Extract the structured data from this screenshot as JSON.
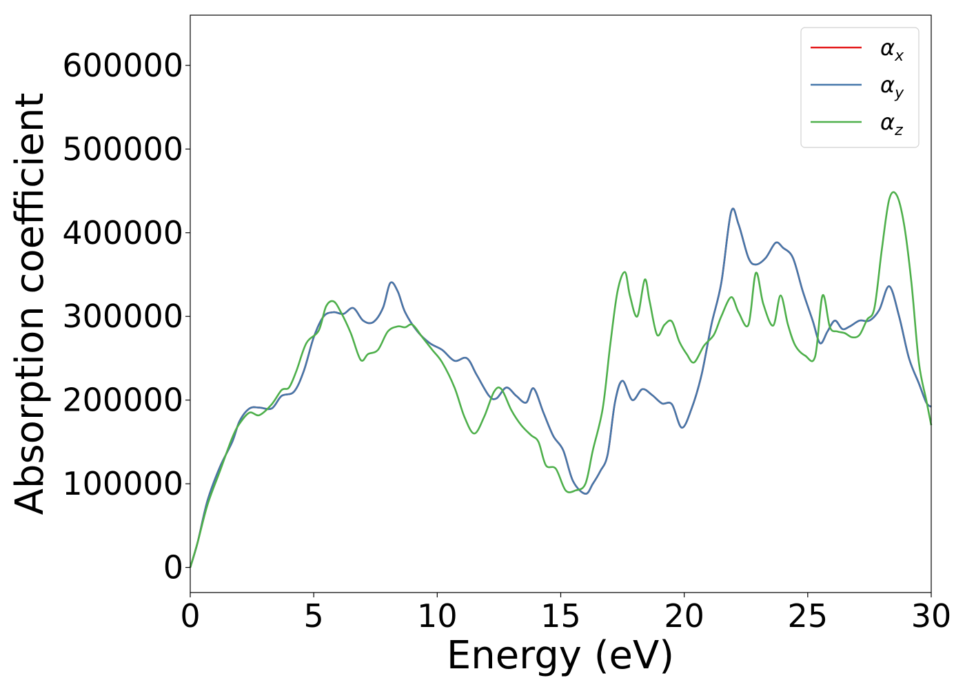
{
  "chart_data": {
    "type": "line",
    "title": "",
    "xlabel": "Energy (eV)",
    "ylabel": "Absorption coefficient",
    "xlim": [
      0,
      30
    ],
    "ylim": [
      -30000,
      660000
    ],
    "xticks": [
      0,
      5,
      10,
      15,
      20,
      25,
      30
    ],
    "xtick_labels": [
      "0",
      "5",
      "10",
      "15",
      "20",
      "25",
      "30"
    ],
    "yticks": [
      0,
      100000,
      200000,
      300000,
      400000,
      500000,
      600000
    ],
    "ytick_labels": [
      "0",
      "100000",
      "200000",
      "300000",
      "400000",
      "500000",
      "600000"
    ],
    "grid": false,
    "legend_position": "top-right",
    "series": [
      {
        "name": "α_x",
        "label_main": "α",
        "label_sub": "x",
        "color": "#e41a1c",
        "x": [
          0,
          0.3,
          0.7,
          1.2,
          1.7,
          2.0,
          2.4,
          2.8,
          3.3,
          3.7,
          4.2,
          4.6,
          5.0,
          5.4,
          5.8,
          6.2,
          6.6,
          7.0,
          7.4,
          7.8,
          8.1,
          8.4,
          8.7,
          9.2,
          9.7,
          10.2,
          10.7,
          11.2,
          11.6,
          12.1,
          12.4,
          12.8,
          13.2,
          13.6,
          13.9,
          14.3,
          14.7,
          15.1,
          15.5,
          16.0,
          16.3,
          16.6,
          16.9,
          17.2,
          17.5,
          17.9,
          18.3,
          18.7,
          19.1,
          19.5,
          19.9,
          20.3,
          20.7,
          21.1,
          21.5,
          21.9,
          22.2,
          22.6,
          22.9,
          23.3,
          23.7,
          24.0,
          24.4,
          24.8,
          25.2,
          25.5,
          25.8,
          26.1,
          26.4,
          26.7,
          27.1,
          27.5,
          27.9,
          28.3,
          28.7,
          29.1,
          29.5,
          29.8,
          30.0
        ],
        "y": [
          0,
          30000,
          80000,
          120000,
          150000,
          175000,
          190000,
          191000,
          190000,
          205000,
          210000,
          235000,
          275000,
          300000,
          305000,
          303000,
          310000,
          295000,
          293000,
          310000,
          340000,
          330000,
          305000,
          282000,
          268000,
          260000,
          247000,
          250000,
          230000,
          205000,
          202000,
          215000,
          205000,
          197000,
          214000,
          185000,
          157000,
          140000,
          103000,
          88000,
          100000,
          115000,
          135000,
          198000,
          223000,
          200000,
          213000,
          206000,
          196000,
          195000,
          167000,
          190000,
          230000,
          290000,
          340000,
          425000,
          410000,
          370000,
          362000,
          370000,
          388000,
          382000,
          370000,
          330000,
          295000,
          268000,
          282000,
          295000,
          285000,
          288000,
          295000,
          295000,
          308000,
          336000,
          300000,
          250000,
          220000,
          197000,
          192000
        ]
      },
      {
        "name": "α_y",
        "label_main": "α",
        "label_sub": "y",
        "color": "#4477aa",
        "x": [
          0,
          0.3,
          0.7,
          1.2,
          1.7,
          2.0,
          2.4,
          2.8,
          3.3,
          3.7,
          4.2,
          4.6,
          5.0,
          5.4,
          5.8,
          6.2,
          6.6,
          7.0,
          7.4,
          7.8,
          8.1,
          8.4,
          8.7,
          9.2,
          9.7,
          10.2,
          10.7,
          11.2,
          11.6,
          12.1,
          12.4,
          12.8,
          13.2,
          13.6,
          13.9,
          14.3,
          14.7,
          15.1,
          15.5,
          16.0,
          16.3,
          16.6,
          16.9,
          17.2,
          17.5,
          17.9,
          18.3,
          18.7,
          19.1,
          19.5,
          19.9,
          20.3,
          20.7,
          21.1,
          21.5,
          21.9,
          22.2,
          22.6,
          22.9,
          23.3,
          23.7,
          24.0,
          24.4,
          24.8,
          25.2,
          25.5,
          25.8,
          26.1,
          26.4,
          26.7,
          27.1,
          27.5,
          27.9,
          28.3,
          28.7,
          29.1,
          29.5,
          29.8,
          30.0
        ],
        "y": [
          0,
          30000,
          80000,
          120000,
          150000,
          175000,
          190000,
          191000,
          190000,
          205000,
          210000,
          235000,
          275000,
          300000,
          305000,
          303000,
          310000,
          295000,
          293000,
          310000,
          340000,
          330000,
          305000,
          282000,
          268000,
          260000,
          247000,
          250000,
          230000,
          205000,
          202000,
          215000,
          205000,
          197000,
          214000,
          185000,
          157000,
          140000,
          103000,
          88000,
          100000,
          115000,
          135000,
          198000,
          223000,
          200000,
          213000,
          206000,
          196000,
          195000,
          167000,
          190000,
          230000,
          290000,
          340000,
          425000,
          410000,
          370000,
          362000,
          370000,
          388000,
          382000,
          370000,
          330000,
          295000,
          268000,
          282000,
          295000,
          285000,
          288000,
          295000,
          295000,
          308000,
          336000,
          300000,
          250000,
          220000,
          197000,
          192000
        ]
      },
      {
        "name": "α_z",
        "label_main": "α",
        "label_sub": "z",
        "color": "#4daf4a",
        "x": [
          0,
          0.3,
          0.7,
          1.2,
          1.7,
          2.0,
          2.4,
          2.8,
          3.3,
          3.7,
          4.0,
          4.3,
          4.7,
          5.2,
          5.5,
          5.8,
          6.1,
          6.5,
          6.9,
          7.2,
          7.6,
          8.0,
          8.4,
          8.7,
          9.0,
          9.4,
          9.8,
          10.2,
          10.7,
          11.1,
          11.5,
          11.9,
          12.3,
          12.6,
          13.0,
          13.4,
          13.8,
          14.1,
          14.4,
          14.8,
          15.2,
          15.6,
          16.0,
          16.3,
          16.7,
          17.0,
          17.3,
          17.6,
          17.8,
          18.1,
          18.4,
          18.6,
          18.9,
          19.2,
          19.5,
          19.8,
          20.1,
          20.4,
          20.8,
          21.2,
          21.5,
          21.9,
          22.2,
          22.6,
          22.9,
          23.2,
          23.6,
          23.9,
          24.2,
          24.5,
          24.9,
          25.3,
          25.6,
          25.9,
          26.2,
          26.5,
          26.8,
          27.1,
          27.4,
          27.7,
          28.0,
          28.3,
          28.6,
          28.9,
          29.2,
          29.5,
          29.8,
          30.0
        ],
        "y": [
          0,
          30000,
          75000,
          115000,
          155000,
          172000,
          185000,
          182000,
          195000,
          212000,
          215000,
          235000,
          268000,
          283000,
          312000,
          318000,
          305000,
          280000,
          248000,
          255000,
          260000,
          282000,
          288000,
          287000,
          290000,
          275000,
          260000,
          245000,
          215000,
          180000,
          160000,
          180000,
          210000,
          213000,
          188000,
          170000,
          158000,
          150000,
          122000,
          118000,
          92000,
          92000,
          100000,
          140000,
          190000,
          265000,
          330000,
          353000,
          325000,
          300000,
          344000,
          318000,
          278000,
          290000,
          294000,
          270000,
          255000,
          245000,
          265000,
          278000,
          300000,
          323000,
          305000,
          290000,
          352000,
          315000,
          289000,
          325000,
          290000,
          265000,
          253000,
          252000,
          325000,
          287000,
          282000,
          280000,
          275000,
          278000,
          296000,
          310000,
          380000,
          440000,
          445000,
          410000,
          340000,
          245000,
          200000,
          170000
        ]
      }
    ]
  }
}
